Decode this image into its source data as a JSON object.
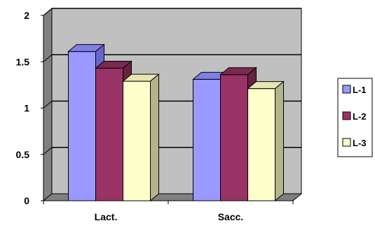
{
  "chart_data": {
    "type": "bar",
    "title": "",
    "xlabel": "",
    "ylabel": "",
    "categories": [
      "Lact.",
      "Sacc."
    ],
    "series": [
      {
        "name": "L-1",
        "values": [
          1.61,
          1.31
        ],
        "color": "#9999FF",
        "top_color": "#7F7FE6",
        "side_color": "#6666CC"
      },
      {
        "name": "L-2",
        "values": [
          1.43,
          1.36
        ],
        "color": "#993366",
        "top_color": "#7A2952",
        "side_color": "#66223F"
      },
      {
        "name": "L-3",
        "values": [
          1.29,
          1.21
        ],
        "color": "#FFFFCC",
        "top_color": "#E6E6B2",
        "side_color": "#B3B38C"
      }
    ],
    "ylim": [
      0,
      2
    ],
    "yticks": [
      0,
      0.5,
      1,
      1.5,
      2
    ],
    "ytick_labels": [
      "0",
      "0.5",
      "1",
      "1.5",
      "2"
    ],
    "grid": true,
    "legend_position": "right",
    "wall_color": "#C0C0C0",
    "floor_color": "#808080"
  }
}
